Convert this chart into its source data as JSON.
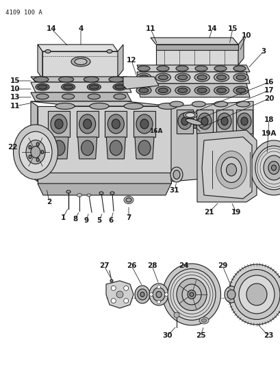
{
  "title": "4109 100 A",
  "bg_color": "#ffffff",
  "line_color": "#1a1a1a",
  "fig_width": 4.1,
  "fig_height": 5.33,
  "dpi": 100
}
